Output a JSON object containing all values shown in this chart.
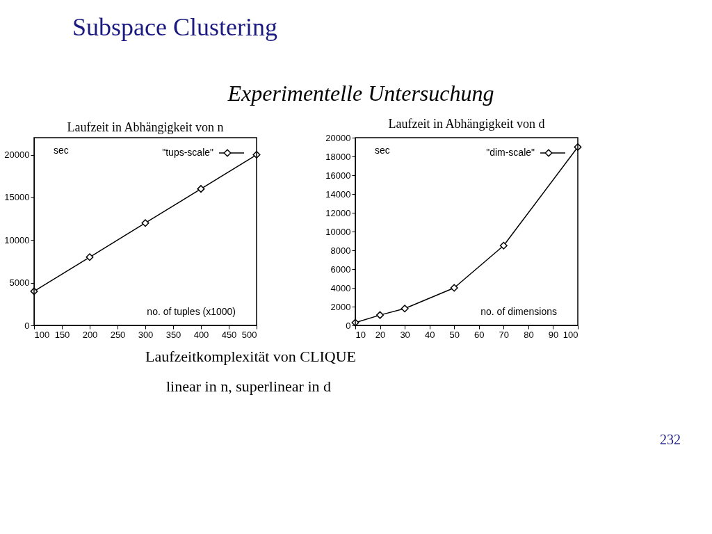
{
  "chart_data": [
    {
      "type": "line",
      "title": "Laufzeit in Abhängigkeit von n",
      "xlabel": "no. of tuples (x1000)",
      "ylabel": "sec",
      "x": [
        100,
        200,
        300,
        400,
        500
      ],
      "series": [
        {
          "name": "\"tups-scale\"",
          "color": "#000000",
          "values": [
            4000,
            8000,
            12000,
            16000,
            20000
          ]
        }
      ],
      "xlim": [
        100,
        500
      ],
      "xticks": [
        100,
        150,
        200,
        250,
        300,
        350,
        400,
        450,
        500
      ],
      "ylim": [
        0,
        22000
      ],
      "yticks": [
        0,
        5000,
        10000,
        15000,
        20000
      ],
      "legend": "top right",
      "marker": "diamond",
      "line_style": "solid",
      "grid": false,
      "annotations": [
        "Subspace Clustering",
        "Experimentelle Untersuchung",
        "Laufzeitkomplexität von CLIQUE",
        "linear in n, superlinear in d",
        "232"
      ]
    },
    {
      "type": "line",
      "title": "Laufzeit in Abhängigkeit von d",
      "xlabel": "no. of dimensions",
      "ylabel": "sec",
      "x": [
        10,
        20,
        30,
        50,
        70,
        100
      ],
      "series": [
        {
          "name": "\"dim-scale\"",
          "color": "#000000",
          "values": [
            300,
            1100,
            1800,
            4000,
            8500,
            19000
          ]
        }
      ],
      "xlim": [
        10,
        100
      ],
      "xticks": [
        10,
        20,
        30,
        40,
        50,
        60,
        70,
        80,
        90,
        100
      ],
      "ylim": [
        0,
        20000
      ],
      "yticks": [
        0,
        2000,
        4000,
        6000,
        8000,
        10000,
        12000,
        14000,
        16000,
        18000,
        20000
      ],
      "legend": "top right",
      "marker": "diamond",
      "line_style": "solid",
      "grid": false
    }
  ]
}
